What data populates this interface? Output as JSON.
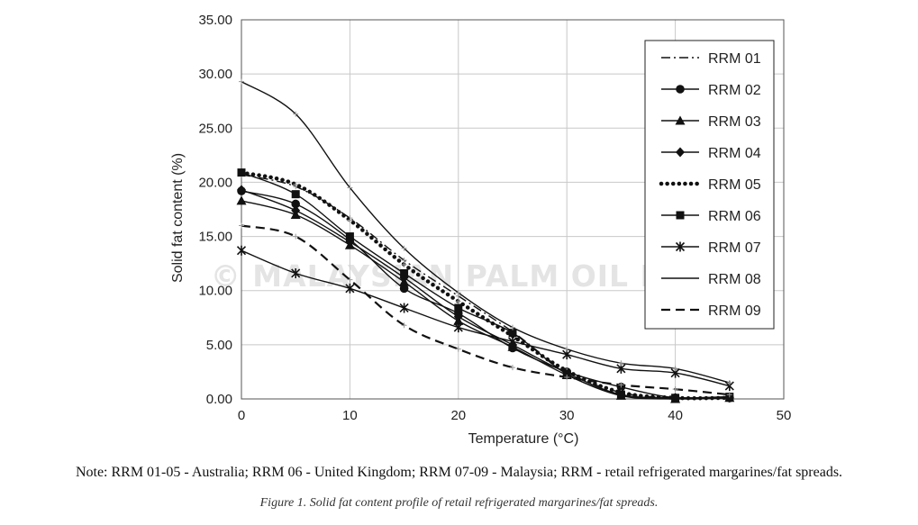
{
  "watermark": "© MALAYSIAN PALM OIL BOARD",
  "note": "Note: RRM 01-05 - Australia; RRM 06 - United Kingdom; RRM 07-09 - Malaysia; RRM - retail refrigerated margarines/fat spreads.",
  "caption": "Figure 1. Solid fat content profile of retail refrigerated margarines/fat spreads.",
  "chart_data": {
    "type": "line",
    "title": "",
    "xlabel": "Temperature (°C)",
    "ylabel": "Solid fat content (%)",
    "xlim": [
      0,
      50
    ],
    "ylim": [
      0,
      35
    ],
    "x_ticks": [
      "0",
      "10",
      "20",
      "30",
      "40",
      "50"
    ],
    "y_ticks": [
      "0.00",
      "5.00",
      "10.00",
      "15.00",
      "20.00",
      "25.00",
      "30.00",
      "35.00"
    ],
    "grid": "major gridlines",
    "legend_position": "top-right",
    "x": [
      0,
      5,
      10,
      15,
      20,
      25,
      30,
      35,
      40,
      45
    ],
    "series": [
      {
        "name": "RRM 01",
        "values": [
          20.7,
          19.6,
          16.7,
          12.8,
          9.5,
          6.2,
          2.5,
          0.6,
          0.1,
          0.2
        ],
        "dash": "dashdot",
        "marker": "none",
        "color": "#111111"
      },
      {
        "name": "RRM 02",
        "values": [
          19.2,
          18.0,
          14.7,
          10.2,
          7.9,
          4.7,
          2.5,
          1.1,
          0.1,
          0.1
        ],
        "dash": "solid",
        "marker": "circle",
        "color": "#111111"
      },
      {
        "name": "RRM 03",
        "values": [
          18.3,
          17.0,
          14.2,
          10.8,
          7.2,
          4.8,
          2.2,
          0.3,
          0.0,
          0.1
        ],
        "dash": "solid",
        "marker": "triangle",
        "color": "#111111"
      },
      {
        "name": "RRM 04",
        "values": [
          19.3,
          17.4,
          14.5,
          11.2,
          7.6,
          5.0,
          2.4,
          0.4,
          0.1,
          0.1
        ],
        "dash": "solid",
        "marker": "diamond",
        "color": "#111111"
      },
      {
        "name": "RRM 05",
        "values": [
          20.9,
          19.8,
          16.5,
          12.4,
          9.0,
          5.8,
          2.6,
          0.6,
          0.1,
          0.1
        ],
        "dash": "dotted",
        "marker": "none",
        "color": "#111111"
      },
      {
        "name": "RRM 06",
        "values": [
          20.9,
          18.9,
          15.0,
          11.6,
          8.4,
          6.1,
          2.3,
          0.4,
          0.1,
          0.2
        ],
        "dash": "solid",
        "marker": "square",
        "color": "#111111"
      },
      {
        "name": "RRM 07",
        "values": [
          13.7,
          11.6,
          10.2,
          8.4,
          6.6,
          5.3,
          4.1,
          2.8,
          2.4,
          1.2
        ],
        "dash": "solid",
        "marker": "x",
        "color": "#111111"
      },
      {
        "name": "RRM 08",
        "values": [
          29.3,
          26.3,
          19.5,
          13.9,
          9.8,
          6.6,
          4.6,
          3.3,
          2.8,
          1.5
        ],
        "dash": "solid",
        "marker": "none",
        "color": "#111111"
      },
      {
        "name": "RRM 09",
        "values": [
          16.0,
          15.0,
          11.0,
          6.8,
          4.6,
          2.9,
          2.0,
          1.3,
          0.9,
          0.4
        ],
        "dash": "dashed",
        "marker": "none",
        "color": "#111111"
      }
    ]
  }
}
